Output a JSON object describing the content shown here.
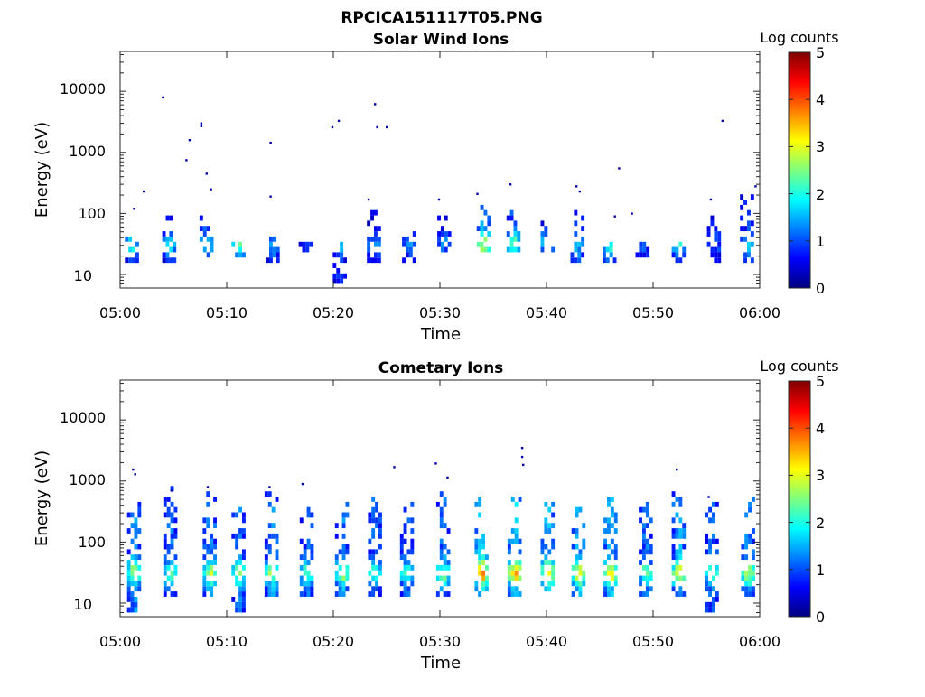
{
  "figure": {
    "title_line1": "RPCICA151117T05.PNG"
  },
  "colorscale": [
    "#00007f",
    "#0000ff",
    "#007fff",
    "#00ffff",
    "#7fff7f",
    "#ffff00",
    "#ff7f00",
    "#ff0000",
    "#7f0000"
  ],
  "chart_data": [
    {
      "type": "heatmap",
      "title": "Solar Wind Ions",
      "xlabel": "Time",
      "ylabel": "Energy (eV)",
      "colorbar_label": "Log counts",
      "x_ticks": [
        "05:00",
        "05:10",
        "05:20",
        "05:30",
        "05:40",
        "05:50",
        "06:00"
      ],
      "x_range_minutes": [
        0,
        60
      ],
      "y_scale": "log",
      "y_ticks": [
        "10",
        "100",
        "1000",
        "10000"
      ],
      "y_range_ev": [
        6,
        45000
      ],
      "colorbar_ticks": [
        "0",
        "1",
        "2",
        "3",
        "4",
        "5"
      ],
      "c_range": [
        0,
        5
      ],
      "bursts": [
        {
          "t": 1.0,
          "emin": 15,
          "emax": 40,
          "peak": 2.0
        },
        {
          "t": 4.5,
          "emin": 13,
          "emax": 90,
          "peak": 1.8
        },
        {
          "t": 8.0,
          "emin": 16,
          "emax": 90,
          "peak": 2.0
        },
        {
          "t": 11.0,
          "emin": 16,
          "emax": 36,
          "peak": 2.3
        },
        {
          "t": 14.2,
          "emin": 13,
          "emax": 38,
          "peak": 1.6
        },
        {
          "t": 17.3,
          "emin": 20,
          "emax": 38,
          "peak": 1.0
        },
        {
          "t": 20.5,
          "emin": 6,
          "emax": 40,
          "peak": 1.6
        },
        {
          "t": 23.7,
          "emin": 15,
          "emax": 95,
          "peak": 1.5
        },
        {
          "t": 27.0,
          "emin": 15,
          "emax": 60,
          "peak": 1.3
        },
        {
          "t": 30.3,
          "emin": 20,
          "emax": 80,
          "peak": 1.3
        },
        {
          "t": 34.0,
          "emin": 20,
          "emax": 150,
          "peak": 3.1
        },
        {
          "t": 36.8,
          "emin": 20,
          "emax": 120,
          "peak": 2.4
        },
        {
          "t": 40.0,
          "emin": 20,
          "emax": 75,
          "peak": 2.1
        },
        {
          "t": 42.8,
          "emin": 15,
          "emax": 100,
          "peak": 1.7
        },
        {
          "t": 45.8,
          "emin": 15,
          "emax": 40,
          "peak": 2.2
        },
        {
          "t": 48.9,
          "emin": 18,
          "emax": 50,
          "peak": 1.2
        },
        {
          "t": 52.3,
          "emin": 13,
          "emax": 45,
          "peak": 2.0
        },
        {
          "t": 55.6,
          "emin": 13,
          "emax": 100,
          "peak": 1.2
        },
        {
          "t": 58.7,
          "emin": 13,
          "emax": 170,
          "peak": 1.7
        }
      ],
      "specks": [
        {
          "t": 1.3,
          "e": 120
        },
        {
          "t": 2.2,
          "e": 230
        },
        {
          "t": 4.0,
          "e": 8000
        },
        {
          "t": 6.2,
          "e": 750
        },
        {
          "t": 6.5,
          "e": 1600
        },
        {
          "t": 7.6,
          "e": 3000
        },
        {
          "t": 7.6,
          "e": 2700
        },
        {
          "t": 8.1,
          "e": 450
        },
        {
          "t": 8.5,
          "e": 250
        },
        {
          "t": 14.1,
          "e": 1450
        },
        {
          "t": 14.1,
          "e": 190
        },
        {
          "t": 19.9,
          "e": 2600
        },
        {
          "t": 20.5,
          "e": 3300
        },
        {
          "t": 23.3,
          "e": 170
        },
        {
          "t": 23.9,
          "e": 6200
        },
        {
          "t": 24.1,
          "e": 2600
        },
        {
          "t": 25.0,
          "e": 2600
        },
        {
          "t": 29.9,
          "e": 170
        },
        {
          "t": 33.5,
          "e": 210
        },
        {
          "t": 36.6,
          "e": 300
        },
        {
          "t": 42.8,
          "e": 280
        },
        {
          "t": 43.1,
          "e": 230
        },
        {
          "t": 46.8,
          "e": 550
        },
        {
          "t": 46.4,
          "e": 90
        },
        {
          "t": 48.0,
          "e": 100
        },
        {
          "t": 55.4,
          "e": 170
        },
        {
          "t": 56.5,
          "e": 3300
        },
        {
          "t": 59.6,
          "e": 280
        }
      ]
    },
    {
      "type": "heatmap",
      "title": "Cometary Ions",
      "xlabel": "Time",
      "ylabel": "Energy (eV)",
      "colorbar_label": "Log counts",
      "x_ticks": [
        "05:00",
        "05:10",
        "05:20",
        "05:30",
        "05:40",
        "05:50",
        "06:00"
      ],
      "x_range_minutes": [
        0,
        60
      ],
      "y_scale": "log",
      "y_ticks": [
        "10",
        "100",
        "1000",
        "10000"
      ],
      "y_range_ev": [
        6,
        45000
      ],
      "colorbar_ticks": [
        "0",
        "1",
        "2",
        "3",
        "4",
        "5"
      ],
      "c_range": [
        0,
        5
      ],
      "bursts": [
        {
          "t": 1.2,
          "emin": 7,
          "emax": 550,
          "peak": 3.0
        },
        {
          "t": 4.6,
          "emin": 12,
          "emax": 700,
          "peak": 2.5
        },
        {
          "t": 8.3,
          "emin": 12,
          "emax": 650,
          "peak": 2.9
        },
        {
          "t": 11.0,
          "emin": 7,
          "emax": 500,
          "peak": 2.7
        },
        {
          "t": 14.1,
          "emin": 11,
          "emax": 600,
          "peak": 2.8
        },
        {
          "t": 17.4,
          "emin": 11,
          "emax": 400,
          "peak": 2.4
        },
        {
          "t": 20.7,
          "emin": 11,
          "emax": 500,
          "peak": 2.8
        },
        {
          "t": 23.8,
          "emin": 11,
          "emax": 500,
          "peak": 2.5
        },
        {
          "t": 26.8,
          "emin": 11,
          "emax": 400,
          "peak": 2.4
        },
        {
          "t": 30.2,
          "emin": 11,
          "emax": 700,
          "peak": 2.6
        },
        {
          "t": 33.8,
          "emin": 11,
          "emax": 500,
          "peak": 3.9
        },
        {
          "t": 36.9,
          "emin": 11,
          "emax": 500,
          "peak": 3.7
        },
        {
          "t": 40.0,
          "emin": 15,
          "emax": 450,
          "peak": 3.4
        },
        {
          "t": 42.9,
          "emin": 11,
          "emax": 500,
          "peak": 3.3
        },
        {
          "t": 45.9,
          "emin": 11,
          "emax": 500,
          "peak": 3.5
        },
        {
          "t": 49.2,
          "emin": 11,
          "emax": 500,
          "peak": 2.6
        },
        {
          "t": 52.3,
          "emin": 11,
          "emax": 600,
          "peak": 3.2
        },
        {
          "t": 55.4,
          "emin": 6,
          "emax": 500,
          "peak": 2.5
        },
        {
          "t": 58.8,
          "emin": 11,
          "emax": 500,
          "peak": 2.9
        }
      ],
      "specks": [
        {
          "t": 1.2,
          "e": 1550
        },
        {
          "t": 1.4,
          "e": 1300
        },
        {
          "t": 4.8,
          "e": 700
        },
        {
          "t": 8.2,
          "e": 800
        },
        {
          "t": 14.0,
          "e": 800
        },
        {
          "t": 17.1,
          "e": 900
        },
        {
          "t": 25.7,
          "e": 1700
        },
        {
          "t": 29.6,
          "e": 1950
        },
        {
          "t": 30.7,
          "e": 1150
        },
        {
          "t": 37.7,
          "e": 3500
        },
        {
          "t": 37.7,
          "e": 2500
        },
        {
          "t": 37.8,
          "e": 1850
        },
        {
          "t": 52.2,
          "e": 1550
        },
        {
          "t": 55.2,
          "e": 550
        }
      ]
    }
  ]
}
